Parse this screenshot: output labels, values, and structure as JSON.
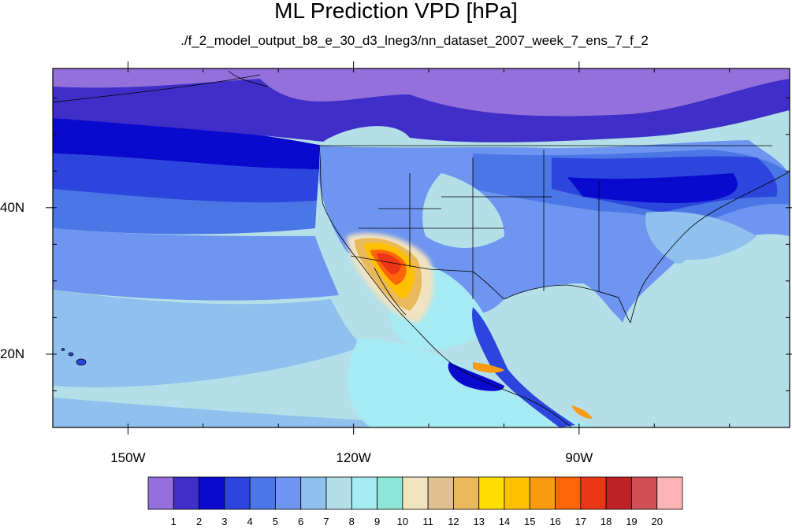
{
  "title": "ML Prediction VPD [hPa]",
  "subtitle": "./f_2_model_output_b8_e_30_d3_lneg3/nn_dataset_2007_week_7_ens_7_f_2",
  "map": {
    "lon_range": [
      -160,
      -62
    ],
    "lat_range": [
      10,
      59
    ],
    "x_ticks": [
      {
        "lon": -150,
        "label": "150W"
      },
      {
        "lon": -120,
        "label": "120W"
      },
      {
        "lon": -90,
        "label": "90W"
      }
    ],
    "y_ticks": [
      {
        "lat": 40,
        "label": "40N"
      },
      {
        "lat": 20,
        "label": "20N"
      }
    ]
  },
  "colorbar": {
    "colors": [
      "#9370db",
      "#3f2fc8",
      "#0a0acf",
      "#2c45dc",
      "#4b77e6",
      "#6e95ef",
      "#8fc0ee",
      "#b4dfe8",
      "#a6eaf3",
      "#8ee6d6",
      "#f2e3c0",
      "#dfc08e",
      "#e9b95b",
      "#ffde00",
      "#fec000",
      "#fa9a10",
      "#fd6508",
      "#eb3718",
      "#bd2326",
      "#d05057",
      "#fbb4b4"
    ],
    "labels": [
      "1",
      "2",
      "3",
      "4",
      "5",
      "6",
      "7",
      "8",
      "9",
      "10",
      "11",
      "12",
      "13",
      "14",
      "15",
      "16",
      "17",
      "18",
      "19",
      "20"
    ]
  }
}
